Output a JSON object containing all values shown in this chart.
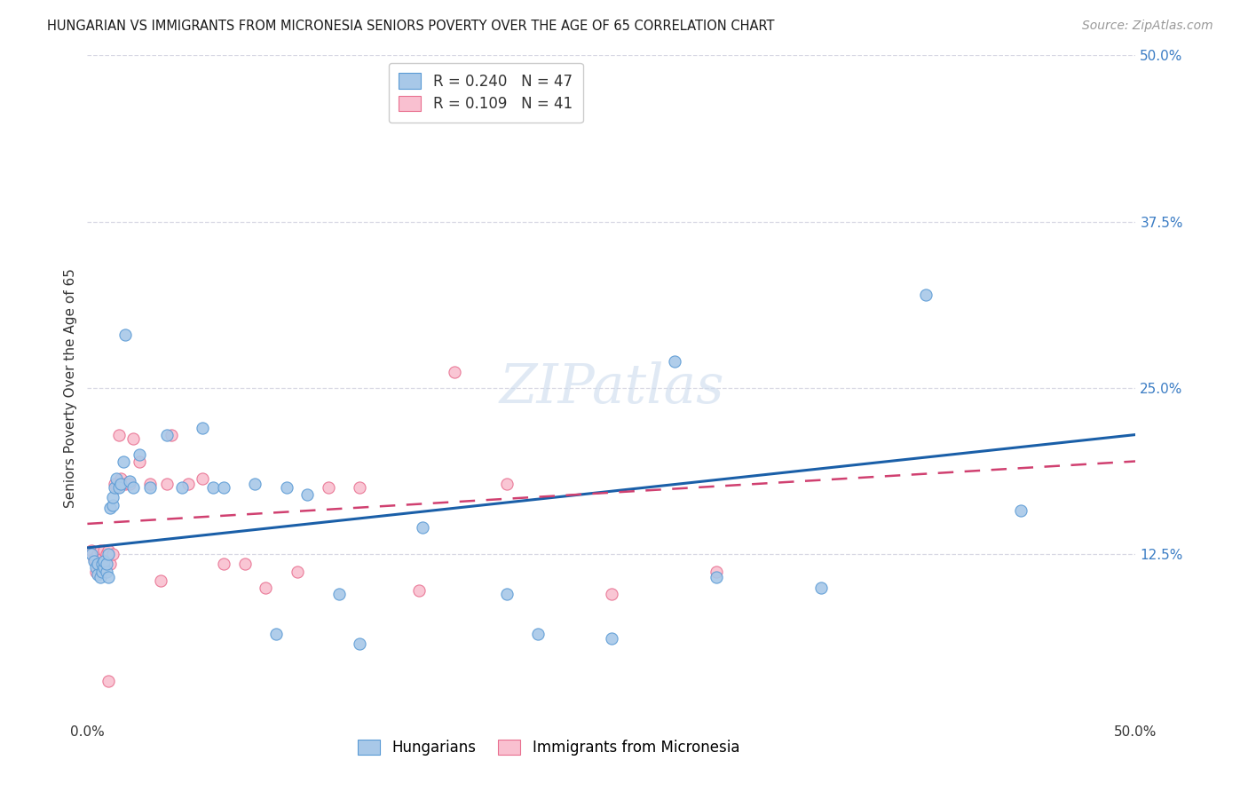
{
  "title": "HUNGARIAN VS IMMIGRANTS FROM MICRONESIA SENIORS POVERTY OVER THE AGE OF 65 CORRELATION CHART",
  "source": "Source: ZipAtlas.com",
  "ylabel": "Seniors Poverty Over the Age of 65",
  "ytick_values": [
    0.125,
    0.25,
    0.375,
    0.5
  ],
  "ytick_labels": [
    "12.5%",
    "25.0%",
    "37.5%",
    "50.0%"
  ],
  "xlim": [
    0.0,
    0.5
  ],
  "ylim": [
    0.0,
    0.5
  ],
  "r_hungarian": 0.24,
  "n_hungarian": 47,
  "r_micronesia": 0.109,
  "n_micronesia": 41,
  "blue_scatter_face": "#a8c8e8",
  "blue_scatter_edge": "#5b9bd5",
  "pink_scatter_face": "#f9c0d0",
  "pink_scatter_edge": "#e87090",
  "blue_line_color": "#1a5fa8",
  "pink_line_color": "#d04070",
  "right_tick_color": "#3a7cc4",
  "grid_color": "#d8d8e4",
  "title_color": "#1a1a1a",
  "source_color": "#999999",
  "axis_color": "#333333",
  "watermark_color": "#c8d8ec",
  "hungarian_x": [
    0.002,
    0.003,
    0.004,
    0.005,
    0.005,
    0.006,
    0.007,
    0.007,
    0.008,
    0.008,
    0.009,
    0.009,
    0.01,
    0.01,
    0.011,
    0.012,
    0.012,
    0.013,
    0.014,
    0.015,
    0.016,
    0.017,
    0.018,
    0.02,
    0.022,
    0.025,
    0.03,
    0.038,
    0.045,
    0.055,
    0.06,
    0.065,
    0.08,
    0.09,
    0.095,
    0.105,
    0.12,
    0.13,
    0.16,
    0.2,
    0.215,
    0.25,
    0.3,
    0.35,
    0.4,
    0.445,
    0.28
  ],
  "hungarian_y": [
    0.125,
    0.12,
    0.115,
    0.11,
    0.118,
    0.108,
    0.112,
    0.118,
    0.115,
    0.12,
    0.112,
    0.118,
    0.108,
    0.125,
    0.16,
    0.162,
    0.168,
    0.175,
    0.182,
    0.175,
    0.178,
    0.195,
    0.29,
    0.18,
    0.175,
    0.2,
    0.175,
    0.215,
    0.175,
    0.22,
    0.175,
    0.175,
    0.178,
    0.065,
    0.175,
    0.17,
    0.095,
    0.058,
    0.145,
    0.095,
    0.065,
    0.062,
    0.108,
    0.1,
    0.32,
    0.158,
    0.27
  ],
  "micronesia_x": [
    0.002,
    0.003,
    0.004,
    0.004,
    0.005,
    0.006,
    0.006,
    0.007,
    0.007,
    0.008,
    0.008,
    0.009,
    0.01,
    0.011,
    0.012,
    0.013,
    0.014,
    0.015,
    0.016,
    0.018,
    0.02,
    0.022,
    0.025,
    0.03,
    0.038,
    0.04,
    0.048,
    0.055,
    0.065,
    0.075,
    0.085,
    0.1,
    0.115,
    0.13,
    0.158,
    0.175,
    0.2,
    0.25,
    0.3,
    0.035,
    0.01
  ],
  "micronesia_y": [
    0.128,
    0.122,
    0.112,
    0.12,
    0.125,
    0.118,
    0.128,
    0.115,
    0.122,
    0.118,
    0.128,
    0.125,
    0.128,
    0.118,
    0.125,
    0.178,
    0.175,
    0.215,
    0.182,
    0.178,
    0.178,
    0.212,
    0.195,
    0.178,
    0.178,
    0.215,
    0.178,
    0.182,
    0.118,
    0.118,
    0.1,
    0.112,
    0.175,
    0.175,
    0.098,
    0.262,
    0.178,
    0.095,
    0.112,
    0.105,
    0.03
  ]
}
